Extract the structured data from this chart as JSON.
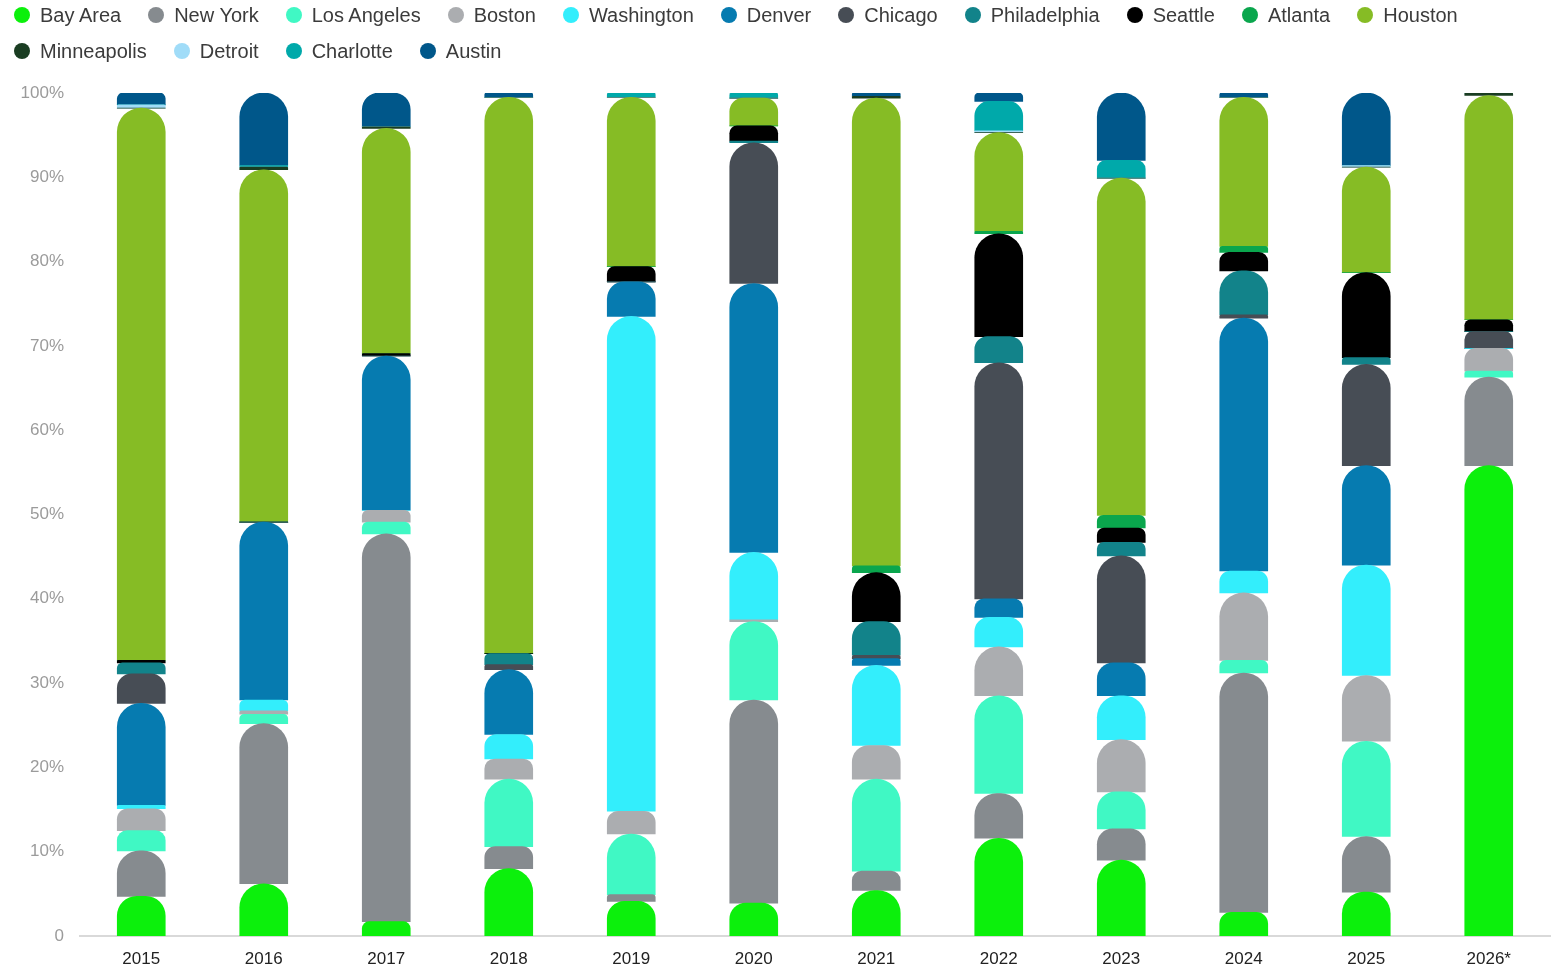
{
  "chart_data": {
    "type": "bar",
    "stacked": true,
    "legend": "top",
    "categories": [
      "2015",
      "2016",
      "2017",
      "2018",
      "2019",
      "2020",
      "2021",
      "2022",
      "2023",
      "2024",
      "2025",
      "2026*"
    ],
    "ylim": [
      0,
      100
    ],
    "yticks": [
      0,
      {
        "value": 10,
        "label": "10%"
      },
      {
        "value": 20,
        "label": "20%"
      },
      {
        "value": 30,
        "label": "30%"
      },
      {
        "value": 40,
        "label": "40%"
      },
      {
        "value": 50,
        "label": "50%"
      },
      {
        "value": 60,
        "label": "60%"
      },
      {
        "value": 70,
        "label": "70%"
      },
      {
        "value": 80,
        "label": "80%"
      },
      {
        "value": 90,
        "label": "90%"
      },
      {
        "value": 100,
        "label": "100%"
      }
    ],
    "series": [
      {
        "name": "Bay Area",
        "color": "#0cf00c",
        "values": [
          4.7,
          6.2,
          1.7,
          8.0,
          4.1,
          3.9,
          5.4,
          11.6,
          9.0,
          2.8,
          5.2,
          55.8
        ]
      },
      {
        "name": "New York",
        "color": "#868b8f",
        "values": [
          5.4,
          19.0,
          46.0,
          2.6,
          0.8,
          24.1,
          2.3,
          5.3,
          3.7,
          28.4,
          6.6,
          10.5
        ]
      },
      {
        "name": "Los Angeles",
        "color": "#40f8c4",
        "values": [
          2.4,
          1.1,
          1.4,
          8.0,
          7.2,
          9.3,
          10.9,
          11.6,
          4.4,
          1.5,
          11.3,
          0.7
        ]
      },
      {
        "name": "Boston",
        "color": "#abadb0",
        "values": [
          2.6,
          0.4,
          1.4,
          2.4,
          2.7,
          0.2,
          4.0,
          5.8,
          6.2,
          8.0,
          7.8,
          2.7
        ]
      },
      {
        "name": "Washington",
        "color": "#33eefc",
        "values": [
          0.4,
          1.3,
          0,
          2.9,
          58.7,
          8.0,
          9.5,
          3.5,
          5.2,
          2.6,
          13.1,
          0
        ]
      },
      {
        "name": "Denver",
        "color": "#067bb0",
        "values": [
          12.1,
          21.1,
          18.3,
          7.7,
          4.1,
          31.9,
          0.8,
          2.2,
          3.9,
          30.0,
          11.8,
          0
        ]
      },
      {
        "name": "Chicago",
        "color": "#474d55",
        "values": [
          3.5,
          0,
          0,
          0.6,
          0,
          16.7,
          0.4,
          28.0,
          12.7,
          0.4,
          12.0,
          2.0
        ]
      },
      {
        "name": "Philadelphia",
        "color": "#12838a",
        "values": [
          1.3,
          0,
          0,
          1.3,
          0,
          0.2,
          4.0,
          3.1,
          1.6,
          5.2,
          0.8,
          0
        ]
      },
      {
        "name": "Seattle",
        "color": "#000000",
        "values": [
          0.3,
          0,
          0.3,
          0,
          1.8,
          1.8,
          5.8,
          12.2,
          1.7,
          2.2,
          10.1,
          1.4
        ]
      },
      {
        "name": "Atlanta",
        "color": "#0aa64d",
        "values": [
          0,
          0,
          0,
          0,
          0,
          0,
          0.8,
          0.3,
          1.5,
          0.7,
          0,
          0
        ]
      },
      {
        "name": "Houston",
        "color": "#86bc25",
        "values": [
          65.5,
          41.8,
          26.7,
          66.0,
          20.1,
          3.3,
          55.5,
          11.7,
          40.0,
          17.7,
          12.5,
          26.6
        ]
      },
      {
        "name": "Minneapolis",
        "color": "#1a3d22",
        "values": [
          0,
          0.3,
          0.2,
          0,
          0,
          0,
          0.2,
          0,
          0,
          0,
          0,
          0.3
        ]
      },
      {
        "name": "Detroit",
        "color": "#a0dcf8",
        "values": [
          0.4,
          0,
          0,
          0,
          0,
          0,
          0,
          0.2,
          0,
          0,
          0.2,
          0
        ]
      },
      {
        "name": "Charlotte",
        "color": "#00a9aa",
        "values": [
          0,
          0.2,
          0,
          0,
          0.5,
          0.6,
          0,
          3.5,
          2.1,
          0,
          0,
          0
        ]
      },
      {
        "name": "Austin",
        "color": "#00578a",
        "values": [
          1.4,
          8.6,
          4.0,
          0.5,
          0,
          0,
          0.4,
          1.0,
          8.0,
          0.5,
          8.6,
          0
        ]
      }
    ]
  }
}
